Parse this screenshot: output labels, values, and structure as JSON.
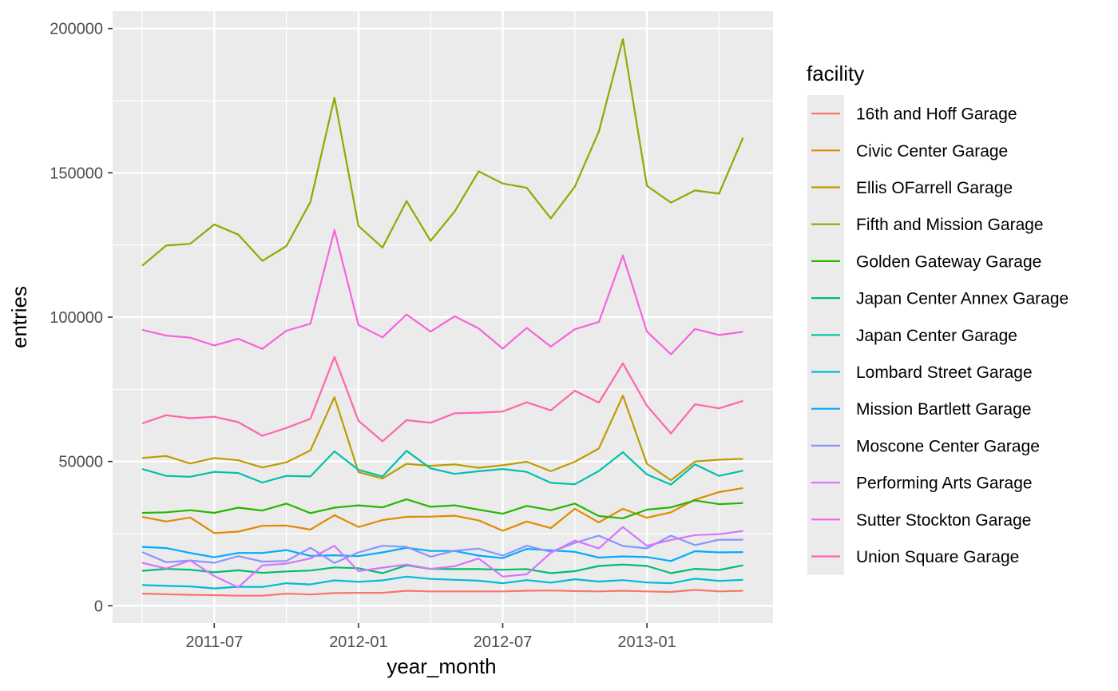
{
  "chart_data": {
    "type": "line",
    "xlabel": "year_month",
    "ylabel": "entries",
    "ylim": [
      -6000,
      206000
    ],
    "y_ticks": [
      0,
      50000,
      100000,
      150000,
      200000
    ],
    "y_tick_labels": [
      "0",
      "50000",
      "100000",
      "150000",
      "200000"
    ],
    "x_dates": [
      "2011-04",
      "2011-05",
      "2011-06",
      "2011-07",
      "2011-08",
      "2011-09",
      "2011-10",
      "2011-11",
      "2011-12",
      "2012-01",
      "2012-02",
      "2012-03",
      "2012-04",
      "2012-05",
      "2012-06",
      "2012-07",
      "2012-08",
      "2012-09",
      "2012-10",
      "2012-11",
      "2012-12",
      "2013-01",
      "2013-02",
      "2013-03",
      "2013-04",
      "2013-05"
    ],
    "x_ticks": [
      "2011-07",
      "2012-01",
      "2012-07",
      "2013-01"
    ],
    "x_tick_labels": [
      "2011-07",
      "2012-01",
      "2012-07",
      "2013-01"
    ],
    "grid": true,
    "panel_background": "#ebebeb",
    "legend": {
      "title": "facility",
      "placement": "right"
    },
    "series": [
      {
        "name": "16th and Hoff Garage",
        "color": "#F8766D",
        "values": [
          4200,
          4000,
          3800,
          3700,
          3500,
          3500,
          4200,
          3900,
          4400,
          4500,
          4500,
          5200,
          5000,
          5000,
          5000,
          5000,
          5200,
          5300,
          5100,
          5000,
          5200,
          5000,
          4800,
          5500,
          5000,
          5200
        ]
      },
      {
        "name": "Civic Center Garage",
        "color": "#E18A00",
        "values": [
          30800,
          29200,
          30600,
          25200,
          25700,
          27700,
          27800,
          26400,
          31400,
          27300,
          29700,
          30800,
          30900,
          31200,
          29600,
          26000,
          29200,
          26900,
          33600,
          28900,
          33600,
          30500,
          32400,
          36800,
          39400,
          40800
        ]
      },
      {
        "name": "Ellis OFarrell Garage",
        "color": "#BE9C00",
        "values": [
          51200,
          51900,
          49300,
          51200,
          50400,
          47900,
          49700,
          53800,
          72300,
          46300,
          44100,
          49200,
          48500,
          49000,
          47800,
          48700,
          49900,
          46600,
          49900,
          54500,
          72800,
          49200,
          43500,
          50000,
          50600,
          50900
        ]
      },
      {
        "name": "Fifth and Mission Garage",
        "color": "#8CAB00",
        "values": [
          117800,
          124800,
          125400,
          132100,
          128600,
          119500,
          124600,
          139900,
          176000,
          131600,
          124100,
          140200,
          126400,
          136600,
          150500,
          146300,
          144800,
          134200,
          145200,
          164300,
          196300,
          145500,
          139700,
          143900,
          142800,
          162200
        ]
      },
      {
        "name": "Golden Gateway Garage",
        "color": "#24B700",
        "values": [
          32200,
          32400,
          33100,
          32200,
          34000,
          33000,
          35400,
          32100,
          34000,
          34800,
          34100,
          36900,
          34300,
          34800,
          33300,
          31900,
          34600,
          33100,
          35400,
          31100,
          30300,
          33300,
          34100,
          36500,
          35200,
          35600
        ]
      },
      {
        "name": "Japan Center Annex Garage",
        "color": "#00BE70",
        "values": [
          12100,
          12800,
          12500,
          11600,
          12300,
          11400,
          11900,
          12200,
          13300,
          13000,
          11300,
          14000,
          12800,
          12700,
          12700,
          12500,
          12700,
          11300,
          12000,
          13800,
          14300,
          13800,
          11300,
          12800,
          12400,
          14000
        ]
      },
      {
        "name": "Japan Center Garage",
        "color": "#00C1AB",
        "values": [
          47400,
          45000,
          44700,
          46400,
          46000,
          42700,
          45000,
          44800,
          53500,
          47100,
          44800,
          53700,
          47600,
          45700,
          46600,
          47400,
          46400,
          42600,
          42100,
          46700,
          53200,
          45500,
          42000,
          49000,
          45000,
          46800
        ]
      },
      {
        "name": "Lombard Street Garage",
        "color": "#00BBDA",
        "values": [
          7200,
          6900,
          6700,
          6000,
          6600,
          6500,
          7800,
          7400,
          8800,
          8300,
          8800,
          10100,
          9300,
          9000,
          8700,
          7800,
          8900,
          8000,
          9200,
          8400,
          8900,
          8100,
          7800,
          9400,
          8600,
          9000
        ]
      },
      {
        "name": "Mission Bartlett Garage",
        "color": "#00ACFC",
        "values": [
          20400,
          20000,
          18300,
          16800,
          18300,
          18300,
          19300,
          17300,
          17500,
          17200,
          18500,
          20100,
          19000,
          19000,
          17400,
          16500,
          19700,
          19200,
          18700,
          16700,
          17100,
          16900,
          15500,
          18900,
          18500,
          18600
        ]
      },
      {
        "name": "Moscone Center Garage",
        "color": "#8B93FF",
        "values": [
          18600,
          15100,
          15700,
          14900,
          17200,
          15300,
          15500,
          20100,
          14800,
          18500,
          20800,
          20400,
          17000,
          19100,
          19800,
          17400,
          20800,
          18700,
          21800,
          24300,
          20700,
          19900,
          24300,
          21000,
          22900,
          22900
        ]
      },
      {
        "name": "Performing Arts Garage",
        "color": "#D575FE",
        "values": [
          14900,
          12900,
          15700,
          10300,
          6400,
          14000,
          14600,
          16400,
          20800,
          12000,
          13200,
          14300,
          12800,
          13700,
          16400,
          10100,
          10900,
          18300,
          22600,
          19900,
          27300,
          20800,
          22800,
          24500,
          24800,
          25900
        ]
      },
      {
        "name": "Sutter Stockton Garage",
        "color": "#F962DD",
        "values": [
          95600,
          93600,
          92900,
          90200,
          92500,
          89000,
          95300,
          97700,
          130200,
          97300,
          93000,
          100900,
          95000,
          100300,
          96100,
          89100,
          96300,
          89800,
          95800,
          98300,
          121400,
          95000,
          87100,
          95900,
          93800,
          94900
        ]
      },
      {
        "name": "Union Square Garage",
        "color": "#FF65AC",
        "values": [
          63200,
          66000,
          65000,
          65500,
          63600,
          58900,
          61600,
          64800,
          86200,
          64100,
          57000,
          64300,
          63400,
          66700,
          66900,
          67300,
          70500,
          67700,
          74500,
          70400,
          84000,
          69300,
          59700,
          69800,
          68400,
          71000
        ]
      }
    ]
  }
}
